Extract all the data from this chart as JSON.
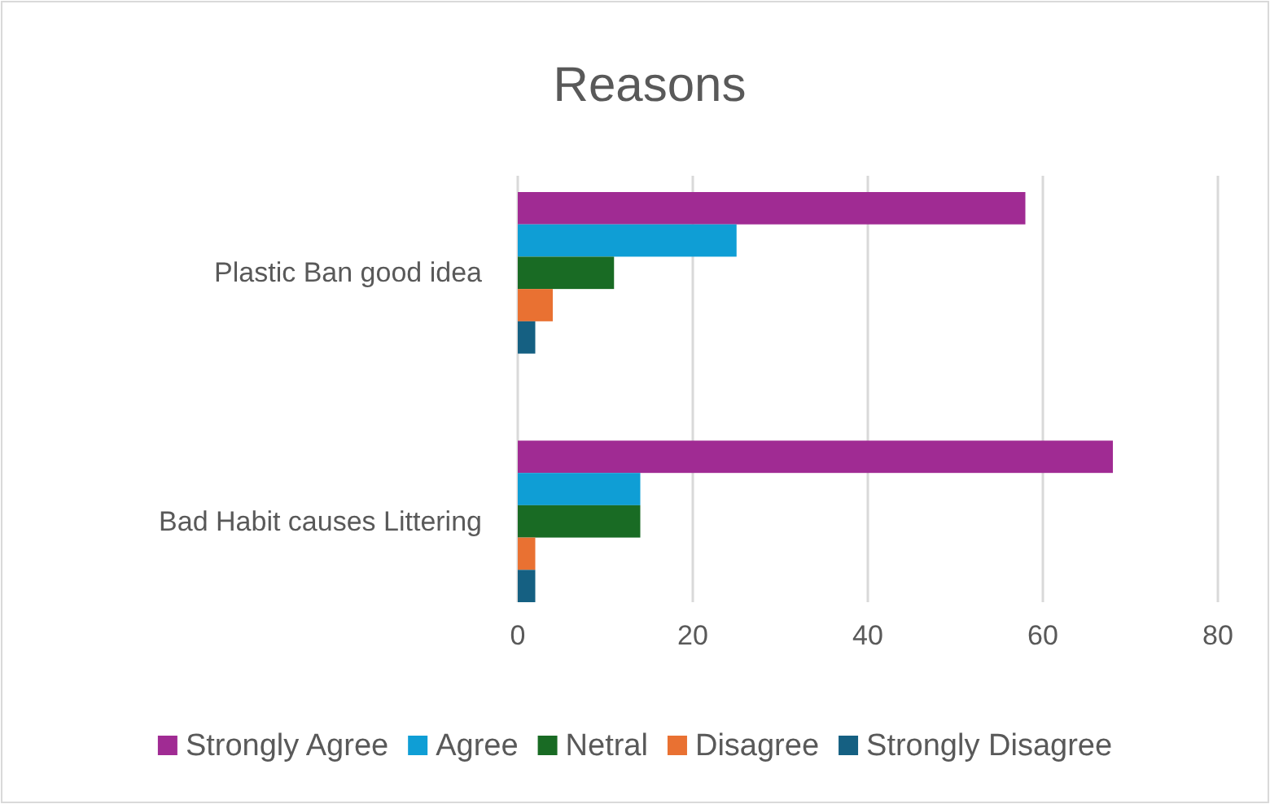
{
  "chart_data": {
    "type": "bar",
    "title": "Reasons",
    "orientation": "horizontal",
    "categories": [
      "Plastic Ban good idea",
      "Bad Habit causes Littering"
    ],
    "series": [
      {
        "name": "Strongly Agree",
        "color": "#a02b93",
        "values": [
          58,
          68
        ]
      },
      {
        "name": "Agree",
        "color": "#0f9ed5",
        "values": [
          25,
          14
        ]
      },
      {
        "name": "Netral",
        "color": "#196b24",
        "values": [
          11,
          14
        ]
      },
      {
        "name": "Disagree",
        "color": "#e97132",
        "values": [
          4,
          2
        ]
      },
      {
        "name": "Strongly Disagree",
        "color": "#156082",
        "values": [
          2,
          2
        ]
      }
    ],
    "xlim": [
      0,
      80
    ],
    "xticks": [
      0,
      20,
      40,
      60,
      80
    ],
    "grid": "x",
    "legend": "bottom"
  }
}
